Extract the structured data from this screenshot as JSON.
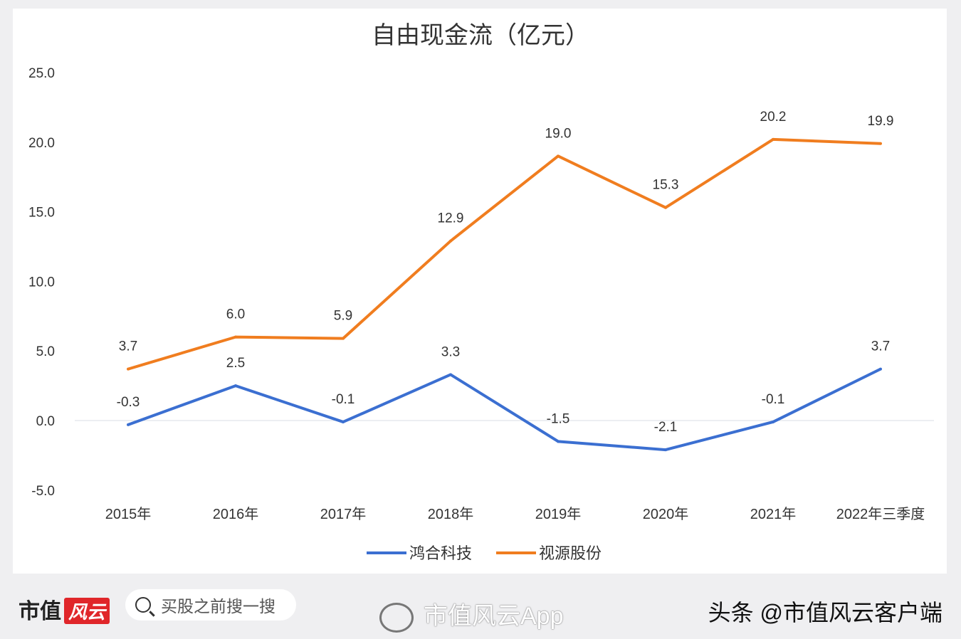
{
  "chart_data": {
    "type": "line",
    "title": "自由现金流（亿元）",
    "categories": [
      "2015年",
      "2016年",
      "2017年",
      "2018年",
      "2019年",
      "2020年",
      "2021年",
      "2022年三季度"
    ],
    "ylim": [
      -5,
      25
    ],
    "yticks": [
      "25.0",
      "20.0",
      "15.0",
      "10.0",
      "5.0",
      "0.0",
      "-5.0"
    ],
    "ytick_values": [
      25,
      20,
      15,
      10,
      5,
      0,
      -5
    ],
    "grid": false,
    "legend_position": "bottom",
    "series": [
      {
        "name": "鸿合科技",
        "color": "#3b6fd1",
        "values": [
          -0.3,
          2.5,
          -0.1,
          3.3,
          -1.5,
          -2.1,
          -0.1,
          3.7
        ],
        "labels": [
          "-0.3",
          "2.5",
          "-0.1",
          "3.3",
          "-1.5",
          "-2.1",
          "-0.1",
          "3.7"
        ]
      },
      {
        "name": "视源股份",
        "color": "#f07d1f",
        "values": [
          3.7,
          6.0,
          5.9,
          12.9,
          19.0,
          15.3,
          20.2,
          19.9
        ],
        "labels": [
          "3.7",
          "6.0",
          "5.9",
          "12.9",
          "19.0",
          "15.3",
          "20.2",
          "19.9"
        ]
      }
    ]
  },
  "footer": {
    "brand": "市值",
    "brand_logo": "风云",
    "search_placeholder": "买股之前搜一搜",
    "weibo": "市值风云App",
    "toutiao": "头条 @市值风云客户端"
  }
}
